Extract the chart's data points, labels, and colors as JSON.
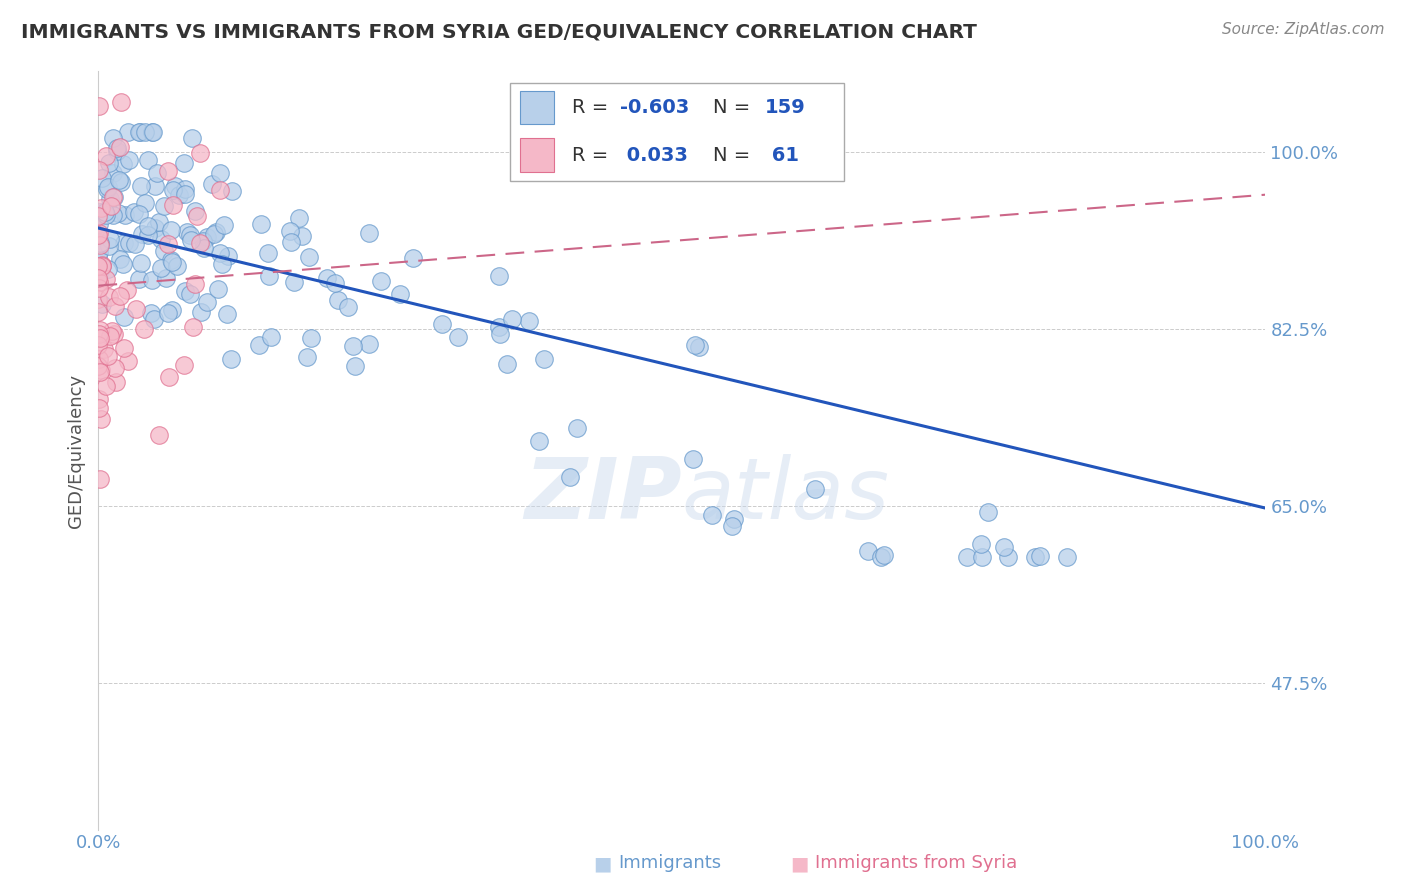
{
  "title": "IMMIGRANTS VS IMMIGRANTS FROM SYRIA GED/EQUIVALENCY CORRELATION CHART",
  "source_text": "Source: ZipAtlas.com",
  "ylabel": "GED/Equivalency",
  "xlim": [
    0.0,
    1.0
  ],
  "ylim": [
    0.33,
    1.08
  ],
  "yticks": [
    0.475,
    0.65,
    0.825,
    1.0
  ],
  "ytick_labels": [
    "47.5%",
    "65.0%",
    "82.5%",
    "100.0%"
  ],
  "xticks": [
    0.0,
    1.0
  ],
  "xtick_labels": [
    "0.0%",
    "100.0%"
  ],
  "blue_N": 159,
  "blue_R": -0.603,
  "pink_N": 61,
  "pink_R": 0.033,
  "blue_color": "#b8d0ea",
  "blue_edge_color": "#6699cc",
  "pink_color": "#f5b8c8",
  "pink_edge_color": "#e07090",
  "blue_line_color": "#2255bb",
  "pink_line_color": "#cc6688",
  "blue_line_y0": 0.925,
  "blue_line_y1": 0.648,
  "pink_line_y0": 0.868,
  "pink_line_y1": 0.958,
  "watermark": "ZIPatlas",
  "background_color": "#ffffff",
  "title_color": "#333333",
  "axis_label_color": "#555555",
  "tick_color": "#6699cc",
  "grid_color": "#cccccc",
  "source_color": "#888888",
  "legend_R_color": "#2255bb",
  "legend_label_color": "#333333"
}
